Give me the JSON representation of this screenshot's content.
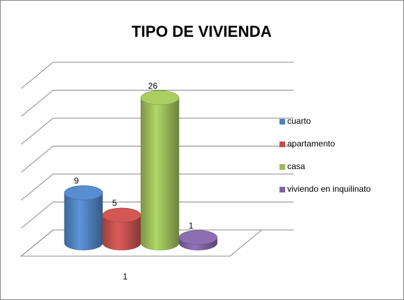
{
  "chart_data": {
    "type": "bar3d",
    "title": "TIPO DE VIVIENDA",
    "categories": [
      "1"
    ],
    "series": [
      {
        "name": "cuarto",
        "color": "#4f81bd",
        "values": [
          9
        ]
      },
      {
        "name": "apartamento",
        "color": "#c0504d",
        "values": [
          5
        ]
      },
      {
        "name": "casa",
        "color": "#9bbb59",
        "values": [
          26
        ]
      },
      {
        "name": "viviendo en inquilinato",
        "color": "#8064a2",
        "values": [
          1
        ]
      }
    ],
    "ylim": [
      0,
      30
    ],
    "yticks": [
      0,
      5,
      10,
      15,
      20,
      25,
      30
    ],
    "grid": true,
    "legend": "right"
  }
}
